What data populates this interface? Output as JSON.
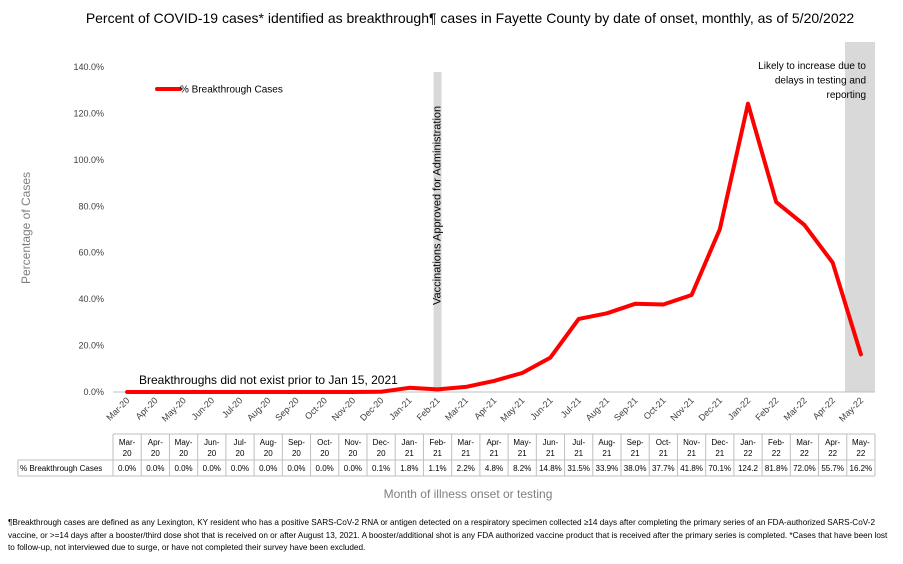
{
  "title": "Percent of COVID-19 cases* identified as breakthrough¶ cases in Fayette County by date of onset, monthly, as of 5/20/2022",
  "footnote": "¶Breakthrough cases are defined as any Lexington, KY resident who has a positive SARS-CoV-2 RNA or antigen detected on a respiratory specimen collected ≥14 days after completing the primary series of an FDA-authorized SARS-CoV-2 vaccine, or >=14 days after a booster/third dose shot that is received on or after August 13, 2021.  A booster/additional shot is any FDA authorized vaccine product that is received after the primary series is completed. *Cases that have been lost to follow-up, not interviewed due to surge, or have not completed their survey have been excluded.",
  "colors": {
    "series": "#ff0000",
    "band": "#d9d9d9",
    "grid_axis": "#bfbfbf"
  },
  "chart_data": {
    "type": "line",
    "ylabel": "Percentage of Cases",
    "xlabel": "Month of illness onset or testing",
    "ylim": [
      0,
      140
    ],
    "yticks": [
      "0.0%",
      "20.0%",
      "40.0%",
      "60.0%",
      "80.0%",
      "100.0%",
      "120.0%",
      "140.0%"
    ],
    "grid": false,
    "legend_position": "top-left",
    "categories": [
      "Mar-20",
      "Apr-20",
      "May-20",
      "Jun-20",
      "Jul-20",
      "Aug-20",
      "Sep-20",
      "Oct-20",
      "Nov-20",
      "Dec-20",
      "Jan-21",
      "Feb-21",
      "Mar-21",
      "Apr-21",
      "May-21",
      "Jun-21",
      "Jul-21",
      "Aug-21",
      "Sep-21",
      "Oct-21",
      "Nov-21",
      "Dec-21",
      "Jan-22",
      "Feb-22",
      "Mar-22",
      "Apr-22",
      "May-22"
    ],
    "table_categories": [
      [
        "Mar-",
        "20"
      ],
      [
        "Apr-",
        "20"
      ],
      [
        "May-",
        "20"
      ],
      [
        "Jun-",
        "20"
      ],
      [
        "Jul-",
        "20"
      ],
      [
        "Aug-",
        "20"
      ],
      [
        "Sep-",
        "20"
      ],
      [
        "Oct-",
        "20"
      ],
      [
        "Nov-",
        "20"
      ],
      [
        "Dec-",
        "20"
      ],
      [
        "Jan-",
        "21"
      ],
      [
        "Feb-",
        "21"
      ],
      [
        "Mar-",
        "21"
      ],
      [
        "Apr-",
        "21"
      ],
      [
        "May-",
        "21"
      ],
      [
        "Jun-",
        "21"
      ],
      [
        "Jul-",
        "21"
      ],
      [
        "Aug-",
        "21"
      ],
      [
        "Sep-",
        "21"
      ],
      [
        "Oct-",
        "21"
      ],
      [
        "Nov-",
        "21"
      ],
      [
        "Dec-",
        "21"
      ],
      [
        "Jan-",
        "22"
      ],
      [
        "Feb-",
        "22"
      ],
      [
        "Mar-",
        "22"
      ],
      [
        "Apr-",
        "22"
      ],
      [
        "May-",
        "22"
      ]
    ],
    "series": [
      {
        "name": "% Breakthrough Cases",
        "values": [
          0.0,
          0.0,
          0.0,
          0.0,
          0.0,
          0.0,
          0.0,
          0.0,
          0.0,
          0.1,
          1.8,
          1.1,
          2.2,
          4.8,
          8.2,
          14.8,
          31.5,
          33.9,
          38.0,
          37.7,
          41.8,
          70.1,
          124.2,
          81.8,
          72.0,
          55.7,
          16.2
        ],
        "labels": [
          "0.0%",
          "0.0%",
          "0.0%",
          "0.0%",
          "0.0%",
          "0.0%",
          "0.0%",
          "0.0%",
          "0.0%",
          "0.1%",
          "1.8%",
          "1.1%",
          "2.2%",
          "4.8%",
          "8.2%",
          "14.8%",
          "31.5%",
          "33.9%",
          "38.0%",
          "37.7%",
          "41.8%",
          "70.1%",
          "124.2",
          "81.8%",
          "72.0%",
          "55.7%",
          "16.2%"
        ]
      }
    ],
    "table_row_label": "% Breakthrough Cases",
    "annotations": {
      "vaccination_band": {
        "category": "Feb-21",
        "text": "Vaccinations Approved for Administration"
      },
      "reporting_band": {
        "category": "May-22",
        "text_lines": [
          "Likely to increase due to",
          "delays in testing and",
          "reporting"
        ]
      },
      "pre_vaccine_note": "Breakthroughs did not exist prior to Jan 15, 2021"
    }
  }
}
